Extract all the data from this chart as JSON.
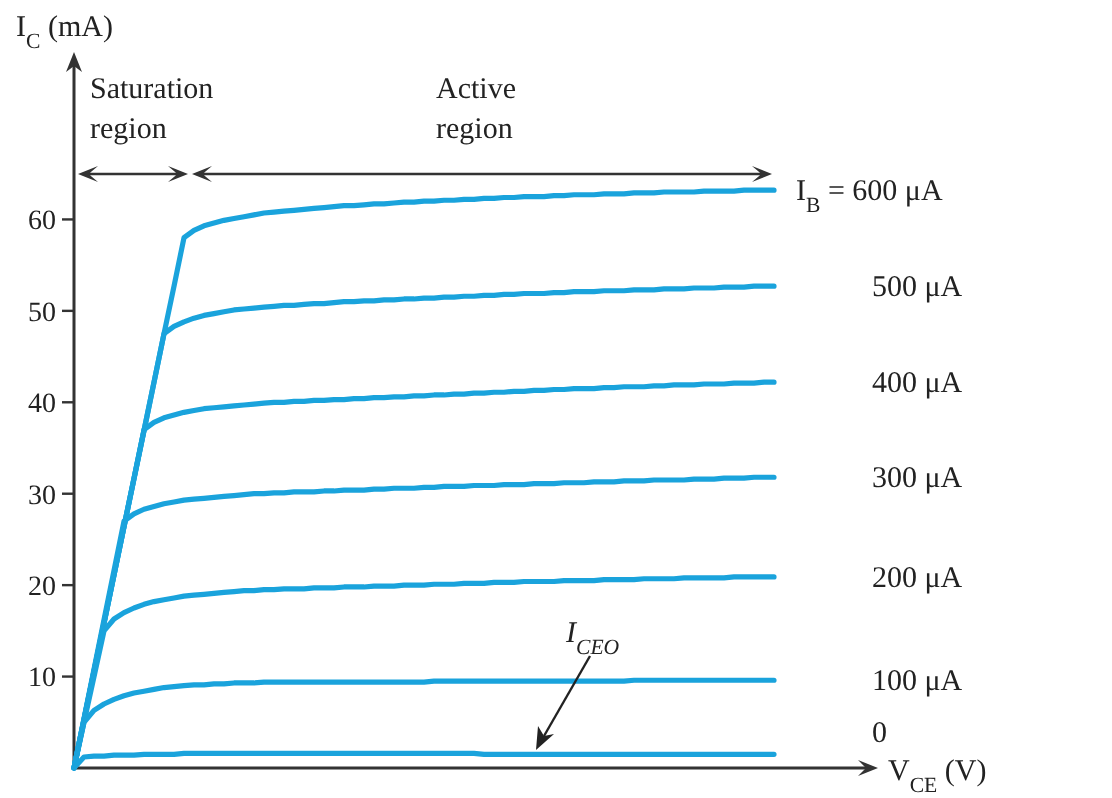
{
  "chart_data": {
    "type": "line",
    "xlabel": "V$_{CE}$ (V)",
    "ylabel": "I$_{C}$ (mA)",
    "ylim": [
      0,
      77
    ],
    "yticks": [
      10,
      20,
      30,
      40,
      50,
      60
    ],
    "tick_labels": "y",
    "annotations": [
      "Saturation region",
      "Active region",
      "I$_{CEO}$"
    ],
    "categories": [
      null,
      null,
      null,
      null,
      null,
      null,
      null,
      null,
      null,
      null,
      null,
      null,
      null,
      null,
      null,
      null,
      null,
      null,
      null,
      null,
      null,
      null,
      null,
      null,
      null,
      null,
      null,
      null,
      null,
      null,
      null,
      null,
      null,
      null,
      null,
      null,
      null,
      null,
      null,
      null,
      null,
      null,
      null,
      null,
      null,
      null,
      null,
      null,
      null,
      null,
      null,
      null,
      null,
      null,
      null,
      null,
      null,
      null,
      null,
      null,
      null,
      null,
      null,
      null,
      null,
      null,
      null,
      null,
      null,
      null,
      null
    ],
    "series": [
      {
        "name": "I$_{B}$ = 600 μA",
        "color": "#1aa3dc",
        "values": [
          0,
          5.3,
          10.5,
          15.8,
          21.1,
          26.4,
          31.6,
          36.9,
          42.2,
          47.5,
          52.7,
          58,
          58.8,
          59.3,
          59.6,
          59.9,
          60.1,
          60.3,
          60.5,
          60.7,
          60.8,
          60.9,
          61.0,
          61.1,
          61.2,
          61.3,
          61.4,
          61.5,
          61.5,
          61.6,
          61.7,
          61.7,
          61.8,
          61.9,
          61.9,
          62.0,
          62.0,
          62.1,
          62.1,
          62.2,
          62.2,
          62.3,
          62.3,
          62.4,
          62.4,
          62.5,
          62.5,
          62.5,
          62.6,
          62.6,
          62.7,
          62.7,
          62.7,
          62.8,
          62.8,
          62.8,
          62.9,
          62.9,
          62.9,
          63.0,
          63.0,
          63.0,
          63.0,
          63.1,
          63.1,
          63.1,
          63.1,
          63.2,
          63.2,
          63.2,
          63.2
        ]
      },
      {
        "name": "500 μA",
        "color": "#1aa3dc",
        "values": [
          0,
          5.3,
          10.6,
          15.8,
          21.1,
          26.4,
          31.7,
          36.9,
          42.2,
          47.5,
          48.3,
          48.8,
          49.2,
          49.5,
          49.7,
          49.9,
          50.1,
          50.2,
          50.3,
          50.4,
          50.5,
          50.6,
          50.6,
          50.7,
          50.8,
          50.8,
          50.9,
          51.0,
          51.0,
          51.1,
          51.1,
          51.2,
          51.2,
          51.3,
          51.3,
          51.4,
          51.4,
          51.5,
          51.5,
          51.6,
          51.6,
          51.7,
          51.7,
          51.8,
          51.8,
          51.9,
          51.9,
          51.9,
          52.0,
          52.0,
          52.1,
          52.1,
          52.1,
          52.2,
          52.2,
          52.2,
          52.3,
          52.3,
          52.3,
          52.4,
          52.4,
          52.4,
          52.5,
          52.5,
          52.5,
          52.6,
          52.6,
          52.6,
          52.7,
          52.7,
          52.7
        ]
      },
      {
        "name": "400 μA",
        "color": "#1aa3dc",
        "values": [
          0,
          5.3,
          10.6,
          15.9,
          21.1,
          26.4,
          31.7,
          37,
          37.8,
          38.3,
          38.6,
          38.9,
          39.1,
          39.3,
          39.4,
          39.5,
          39.6,
          39.7,
          39.8,
          39.9,
          40.0,
          40.0,
          40.1,
          40.1,
          40.2,
          40.2,
          40.3,
          40.3,
          40.4,
          40.4,
          40.5,
          40.5,
          40.6,
          40.6,
          40.7,
          40.7,
          40.8,
          40.8,
          40.9,
          40.9,
          41.0,
          41.0,
          41.1,
          41.1,
          41.2,
          41.2,
          41.3,
          41.3,
          41.4,
          41.4,
          41.5,
          41.5,
          41.5,
          41.6,
          41.6,
          41.7,
          41.7,
          41.7,
          41.8,
          41.8,
          41.9,
          41.9,
          41.9,
          42.0,
          42.0,
          42.0,
          42.1,
          42.1,
          42.1,
          42.2,
          42.2
        ]
      },
      {
        "name": "300 μA",
        "color": "#1aa3dc",
        "values": [
          0,
          5.4,
          10.8,
          16.2,
          21.6,
          27,
          27.8,
          28.3,
          28.6,
          28.9,
          29.1,
          29.3,
          29.4,
          29.5,
          29.6,
          29.7,
          29.8,
          29.9,
          30.0,
          30.0,
          30.1,
          30.1,
          30.2,
          30.2,
          30.2,
          30.3,
          30.3,
          30.4,
          30.4,
          30.4,
          30.5,
          30.5,
          30.6,
          30.6,
          30.6,
          30.7,
          30.7,
          30.8,
          30.8,
          30.8,
          30.9,
          30.9,
          30.9,
          31.0,
          31.0,
          31.0,
          31.1,
          31.1,
          31.1,
          31.2,
          31.2,
          31.2,
          31.3,
          31.3,
          31.3,
          31.4,
          31.4,
          31.4,
          31.5,
          31.5,
          31.5,
          31.5,
          31.6,
          31.6,
          31.6,
          31.7,
          31.7,
          31.7,
          31.8,
          31.8,
          31.8
        ]
      },
      {
        "name": "200 μA",
        "color": "#1aa3dc",
        "values": [
          0,
          5,
          10,
          15,
          16.3,
          17.0,
          17.5,
          17.9,
          18.2,
          18.4,
          18.6,
          18.8,
          18.9,
          19.0,
          19.1,
          19.2,
          19.3,
          19.4,
          19.4,
          19.5,
          19.5,
          19.6,
          19.6,
          19.6,
          19.7,
          19.7,
          19.7,
          19.8,
          19.8,
          19.8,
          19.9,
          19.9,
          19.9,
          20.0,
          20.0,
          20.0,
          20.1,
          20.1,
          20.1,
          20.2,
          20.2,
          20.2,
          20.3,
          20.3,
          20.3,
          20.4,
          20.4,
          20.4,
          20.4,
          20.5,
          20.5,
          20.5,
          20.5,
          20.6,
          20.6,
          20.6,
          20.6,
          20.7,
          20.7,
          20.7,
          20.7,
          20.8,
          20.8,
          20.8,
          20.8,
          20.8,
          20.9,
          20.9,
          20.9,
          20.9,
          20.9
        ]
      },
      {
        "name": "100 μA",
        "color": "#1aa3dc",
        "values": [
          0,
          5,
          6.3,
          7.0,
          7.5,
          7.9,
          8.2,
          8.4,
          8.6,
          8.8,
          8.9,
          9.0,
          9.1,
          9.1,
          9.2,
          9.2,
          9.3,
          9.3,
          9.3,
          9.4,
          9.4,
          9.4,
          9.4,
          9.4,
          9.4,
          9.4,
          9.4,
          9.4,
          9.4,
          9.4,
          9.4,
          9.4,
          9.4,
          9.4,
          9.4,
          9.4,
          9.5,
          9.5,
          9.5,
          9.5,
          9.5,
          9.5,
          9.5,
          9.5,
          9.5,
          9.5,
          9.5,
          9.5,
          9.5,
          9.5,
          9.5,
          9.5,
          9.5,
          9.5,
          9.5,
          9.5,
          9.6,
          9.6,
          9.6,
          9.6,
          9.6,
          9.6,
          9.6,
          9.6,
          9.6,
          9.6,
          9.6,
          9.6,
          9.6,
          9.6,
          9.6
        ]
      },
      {
        "name": "0",
        "color": "#1aa3dc",
        "values": [
          0,
          1.2,
          1.3,
          1.3,
          1.4,
          1.4,
          1.4,
          1.5,
          1.5,
          1.5,
          1.5,
          1.6,
          1.6,
          1.6,
          1.6,
          1.6,
          1.6,
          1.6,
          1.6,
          1.6,
          1.6,
          1.6,
          1.6,
          1.6,
          1.6,
          1.6,
          1.6,
          1.6,
          1.6,
          1.6,
          1.6,
          1.6,
          1.6,
          1.6,
          1.6,
          1.6,
          1.6,
          1.6,
          1.6,
          1.6,
          1.6,
          1.5,
          1.5,
          1.5,
          1.5,
          1.5,
          1.5,
          1.5,
          1.5,
          1.5,
          1.5,
          1.5,
          1.5,
          1.5,
          1.5,
          1.5,
          1.5,
          1.5,
          1.5,
          1.5,
          1.5,
          1.5,
          1.5,
          1.5,
          1.5,
          1.5,
          1.5,
          1.5,
          1.5,
          1.5,
          1.5
        ]
      }
    ]
  }
}
